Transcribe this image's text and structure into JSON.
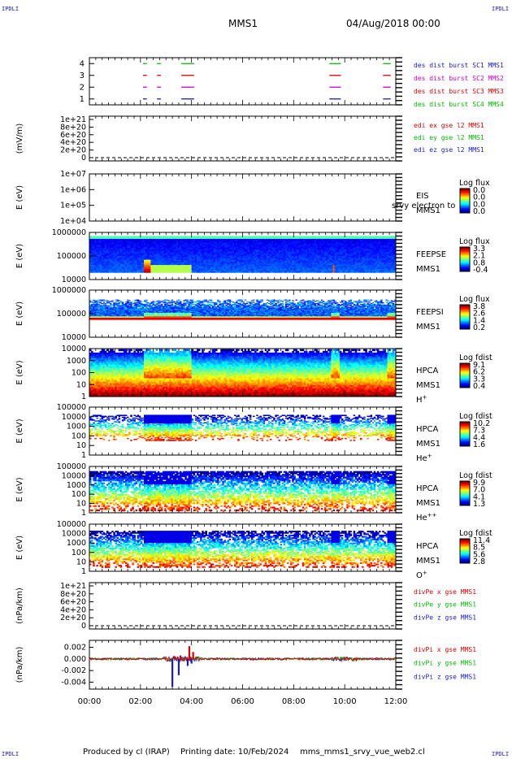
{
  "header": {
    "mission": "MMS1",
    "datetime": "04/Aug/2018 00:00",
    "corner_label": "IPDLI"
  },
  "footer": {
    "produced_by": "Produced by cl (IRAP)",
    "printing_date": "Printing date: 10/Feb/2024",
    "file_name": "mms_mms1_srvy_vue_web2.cl"
  },
  "chart_data": [
    {
      "type": "timeline",
      "ylabel": "",
      "y_ticks": [
        "1",
        "2",
        "3",
        "4"
      ],
      "ylim": [
        0.5,
        4.5
      ],
      "legend": [
        {
          "text": "des dist burst SC1 MMS1",
          "color": "#1a1ad0"
        },
        {
          "text": "des dist burst SC2 MMS2",
          "color": "#cc00cc"
        },
        {
          "text": "des dist burst SC3 MMS3",
          "color": "#dd0000"
        },
        {
          "text": "des dist burst SC4 MMS4",
          "color": "#00bb00"
        }
      ],
      "intervals_hours": [
        [
          2.1,
          2.25
        ],
        [
          2.65,
          2.8
        ],
        [
          3.6,
          4.1
        ],
        [
          9.4,
          9.85
        ],
        [
          11.5,
          11.8
        ]
      ]
    },
    {
      "type": "line",
      "ylabel": "(mV/m)",
      "y_ticks": [
        "0",
        "2e+20",
        "4e+20",
        "6e+20",
        "8e+20",
        "1e+21"
      ],
      "ylim": [
        0,
        1e+21
      ],
      "dashed_zero_line": true,
      "legend": [
        {
          "text": "edi ex gse l2 MMS1",
          "color": "#dd0000"
        },
        {
          "text": "edi ey gse l2 MMS1",
          "color": "#00bb00"
        },
        {
          "text": "edi ez gse l2 MMS1",
          "color": "#1a1ad0"
        }
      ]
    },
    {
      "type": "heatmap",
      "ylabel": "E (eV)",
      "y_ticks": [
        "1e+04",
        "1e+05",
        "1e+06",
        "1e+07"
      ],
      "ylog_range": [
        4,
        7
      ],
      "label_lines": [
        "EIS",
        "MMS1"
      ],
      "overlay_text": "srvy electron to",
      "colorbar": {
        "title": "Log flux",
        "ticks": [
          "0.0",
          "0.0",
          "0.0",
          "0.0"
        ]
      },
      "empty": true
    },
    {
      "type": "heatmap",
      "ylabel": "E (eV)",
      "y_ticks": [
        "10000",
        "100000",
        "1000000"
      ],
      "ylog_range": [
        4,
        6
      ],
      "label_lines": [
        "FEEPSE",
        "MMS1"
      ],
      "colorbar": {
        "title": "Log flux",
        "ticks": [
          "3.3",
          "2.1",
          "0.8",
          "-0.4"
        ]
      },
      "data_band": [
        4.3,
        5.85
      ],
      "events_hours": [
        [
          2.1,
          3.9
        ],
        [
          9.5,
          9.6
        ]
      ]
    },
    {
      "type": "heatmap",
      "ylabel": "E (eV)",
      "y_ticks": [
        "10000",
        "100000",
        "1000000"
      ],
      "ylog_range": [
        4,
        6
      ],
      "label_lines": [
        "FEEPSI",
        "MMS1"
      ],
      "colorbar": {
        "title": "Log flux",
        "ticks": [
          "3.8",
          "2.6",
          "1.4",
          "0.2"
        ]
      },
      "data_band": [
        4.75,
        5.6
      ]
    },
    {
      "type": "heatmap",
      "ylabel": "E (eV)",
      "y_ticks": [
        "1",
        "10",
        "100",
        "1000",
        "10000"
      ],
      "ylog_range": [
        0,
        4.4
      ],
      "label_lines": [
        "HPCA",
        "MMS1",
        "H+"
      ],
      "colorbar": {
        "title": "Log fdist",
        "ticks": [
          "9.1",
          "6.2",
          "3.3",
          "0.4"
        ]
      },
      "data_band": [
        0,
        4.35
      ]
    },
    {
      "type": "heatmap",
      "ylabel": "E (eV)",
      "y_ticks": [
        "1",
        "10",
        "100",
        "1000",
        "10000",
        "100000"
      ],
      "ylog_range": [
        0,
        5
      ],
      "label_lines": [
        "HPCA",
        "MMS1",
        "He+"
      ],
      "colorbar": {
        "title": "Log fdist",
        "ticks": [
          "10.2",
          "7.3",
          "4.4",
          "1.6"
        ]
      },
      "data_band": [
        1.5,
        4.2
      ]
    },
    {
      "type": "heatmap",
      "ylabel": "E (eV)",
      "y_ticks": [
        "1",
        "10",
        "100",
        "1000",
        "10000",
        "100000"
      ],
      "ylog_range": [
        0,
        5
      ],
      "label_lines": [
        "HPCA",
        "MMS1",
        "He++"
      ],
      "colorbar": {
        "title": "Log fdist",
        "ticks": [
          "9.9",
          "7.0",
          "4.1",
          "1.3"
        ]
      },
      "data_band": [
        0.2,
        4.5
      ]
    },
    {
      "type": "heatmap",
      "ylabel": "E (eV)",
      "y_ticks": [
        "1",
        "10",
        "100",
        "1000",
        "10000",
        "100000"
      ],
      "ylog_range": [
        0,
        5
      ],
      "label_lines": [
        "HPCA",
        "MMS1",
        "O+"
      ],
      "colorbar": {
        "title": "Log fdist",
        "ticks": [
          "11.4",
          "8.5",
          "5.6",
          "2.8"
        ]
      },
      "data_band": [
        0.4,
        4.3
      ]
    },
    {
      "type": "line",
      "ylabel": "(nPa/km)",
      "y_ticks": [
        "0",
        "2e+20",
        "4e+20",
        "6e+20",
        "8e+20",
        "1e+21"
      ],
      "ylim": [
        0,
        1e+21
      ],
      "dashed_zero_line": true,
      "legend": [
        {
          "text": "divPe x gse MMS1",
          "color": "#dd0000"
        },
        {
          "text": "divPe y gse MMS1",
          "color": "#00bb00"
        },
        {
          "text": "divPe z gse MMS1",
          "color": "#1a1ad0"
        }
      ]
    },
    {
      "type": "line",
      "ylabel": "(nPa/km)",
      "y_ticks": [
        "-0.004",
        "-0.002",
        "0.000",
        "0.002"
      ],
      "y_tick_values": [
        -0.004,
        -0.002,
        0.0,
        0.002
      ],
      "ylim": [
        -0.0052,
        0.0032
      ],
      "legend": [
        {
          "text": "divPi x gse MMS1",
          "color": "#dd0000"
        },
        {
          "text": "divPi y gse MMS1",
          "color": "#00bb00"
        },
        {
          "text": "divPi z gse MMS1",
          "color": "#1a1ad0"
        }
      ],
      "events": [
        {
          "t": 3.25,
          "z_min": -0.0048,
          "x_max": 0.0005
        },
        {
          "t": 3.5,
          "z_min": -0.0028,
          "x_max": 0.0006
        },
        {
          "t": 3.85,
          "z_min": -0.0012,
          "x_max": 0.0022
        },
        {
          "t": 4.0,
          "z_min": -0.0008,
          "x_max": 0.0012
        }
      ]
    }
  ],
  "x_axis": {
    "range_hours": [
      0,
      12
    ],
    "tick_hours": [
      0,
      2,
      4,
      6,
      8,
      10,
      12
    ],
    "tick_labels": [
      "00:00",
      "02:00",
      "04:00",
      "06:00",
      "08:00",
      "10:00",
      "12:00"
    ]
  }
}
